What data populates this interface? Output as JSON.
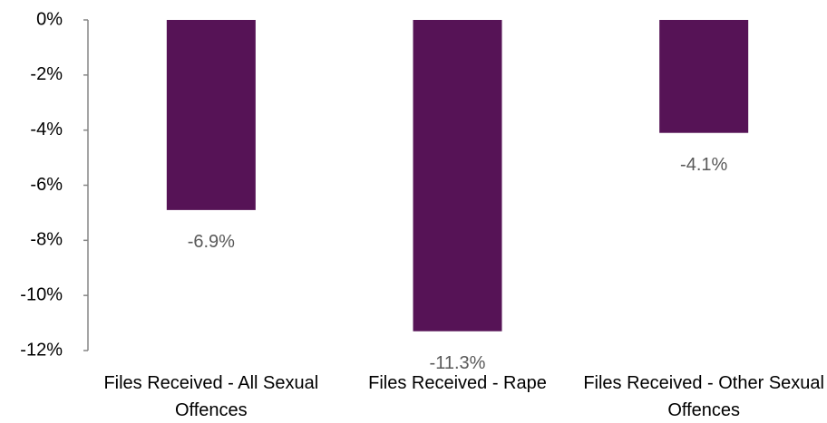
{
  "chart_data": {
    "type": "bar",
    "categories": [
      "Files Received - All Sexual Offences",
      "Files Received - Rape",
      "Files Received - Other Sexual Offences"
    ],
    "values": [
      -6.9,
      -11.3,
      -4.1
    ],
    "value_labels": [
      "-6.9%",
      "-11.3%",
      "-4.1%"
    ],
    "color": "#561356",
    "ylim": [
      -12,
      0
    ],
    "yticks": [
      {
        "value": 0,
        "label": "0%"
      },
      {
        "value": -2,
        "label": "-2%"
      },
      {
        "value": -4,
        "label": "-4%"
      },
      {
        "value": -6,
        "label": "-6%"
      },
      {
        "value": -8,
        "label": "-8%"
      },
      {
        "value": -10,
        "label": "-10%"
      },
      {
        "value": -12,
        "label": "-12%"
      }
    ],
    "grid": false
  }
}
